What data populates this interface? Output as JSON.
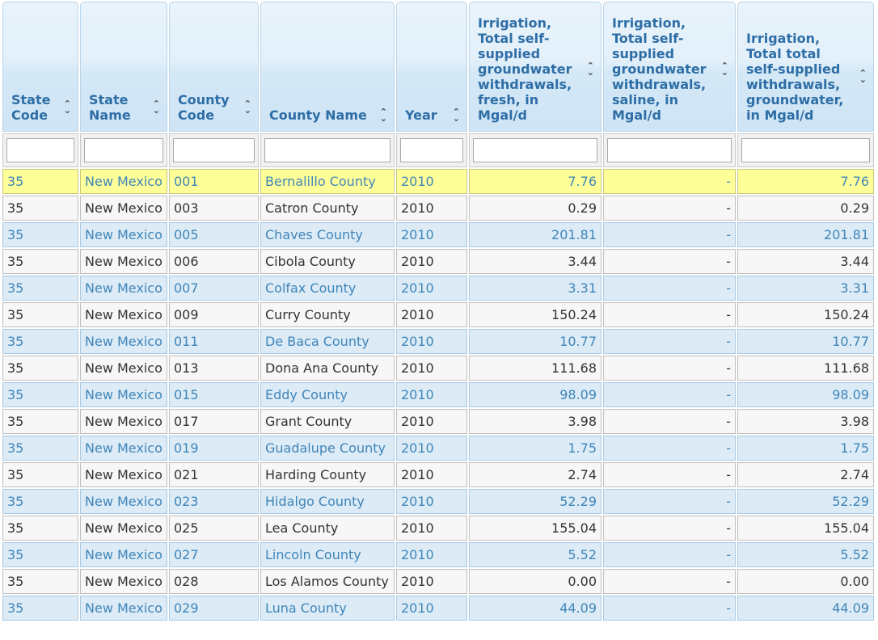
{
  "columns": [
    {
      "label": "State Code"
    },
    {
      "label": "State Name"
    },
    {
      "label": "County Code"
    },
    {
      "label": "County Name"
    },
    {
      "label": "Year"
    },
    {
      "label": "Irrigation, Total self-supplied groundwater withdrawals, fresh, in Mgal/d"
    },
    {
      "label": "Irrigation, Total self-supplied groundwater withdrawals, saline, in Mgal/d"
    },
    {
      "label": "Irrigation, Total total self-supplied withdrawals, groundwater, in Mgal/d"
    }
  ],
  "sort_icon": "sort-updown-icon",
  "rows": [
    {
      "state_code": "35",
      "state_name": "New Mexico",
      "county_code": "001",
      "county_name": "Bernalillo County",
      "year": "2010",
      "fresh": "7.76",
      "saline": "-",
      "total": "7.76"
    },
    {
      "state_code": "35",
      "state_name": "New Mexico",
      "county_code": "003",
      "county_name": "Catron County",
      "year": "2010",
      "fresh": "0.29",
      "saline": "-",
      "total": "0.29"
    },
    {
      "state_code": "35",
      "state_name": "New Mexico",
      "county_code": "005",
      "county_name": "Chaves County",
      "year": "2010",
      "fresh": "201.81",
      "saline": "-",
      "total": "201.81"
    },
    {
      "state_code": "35",
      "state_name": "New Mexico",
      "county_code": "006",
      "county_name": "Cibola County",
      "year": "2010",
      "fresh": "3.44",
      "saline": "-",
      "total": "3.44"
    },
    {
      "state_code": "35",
      "state_name": "New Mexico",
      "county_code": "007",
      "county_name": "Colfax County",
      "year": "2010",
      "fresh": "3.31",
      "saline": "-",
      "total": "3.31"
    },
    {
      "state_code": "35",
      "state_name": "New Mexico",
      "county_code": "009",
      "county_name": "Curry County",
      "year": "2010",
      "fresh": "150.24",
      "saline": "-",
      "total": "150.24"
    },
    {
      "state_code": "35",
      "state_name": "New Mexico",
      "county_code": "011",
      "county_name": "De Baca County",
      "year": "2010",
      "fresh": "10.77",
      "saline": "-",
      "total": "10.77"
    },
    {
      "state_code": "35",
      "state_name": "New Mexico",
      "county_code": "013",
      "county_name": "Dona Ana County",
      "year": "2010",
      "fresh": "111.68",
      "saline": "-",
      "total": "111.68"
    },
    {
      "state_code": "35",
      "state_name": "New Mexico",
      "county_code": "015",
      "county_name": "Eddy County",
      "year": "2010",
      "fresh": "98.09",
      "saline": "-",
      "total": "98.09"
    },
    {
      "state_code": "35",
      "state_name": "New Mexico",
      "county_code": "017",
      "county_name": "Grant County",
      "year": "2010",
      "fresh": "3.98",
      "saline": "-",
      "total": "3.98"
    },
    {
      "state_code": "35",
      "state_name": "New Mexico",
      "county_code": "019",
      "county_name": "Guadalupe County",
      "year": "2010",
      "fresh": "1.75",
      "saline": "-",
      "total": "1.75"
    },
    {
      "state_code": "35",
      "state_name": "New Mexico",
      "county_code": "021",
      "county_name": "Harding County",
      "year": "2010",
      "fresh": "2.74",
      "saline": "-",
      "total": "2.74"
    },
    {
      "state_code": "35",
      "state_name": "New Mexico",
      "county_code": "023",
      "county_name": "Hidalgo County",
      "year": "2010",
      "fresh": "52.29",
      "saline": "-",
      "total": "52.29"
    },
    {
      "state_code": "35",
      "state_name": "New Mexico",
      "county_code": "025",
      "county_name": "Lea County",
      "year": "2010",
      "fresh": "155.04",
      "saline": "-",
      "total": "155.04"
    },
    {
      "state_code": "35",
      "state_name": "New Mexico",
      "county_code": "027",
      "county_name": "Lincoln County",
      "year": "2010",
      "fresh": "5.52",
      "saline": "-",
      "total": "5.52"
    },
    {
      "state_code": "35",
      "state_name": "New Mexico",
      "county_code": "028",
      "county_name": "Los Alamos County",
      "year": "2010",
      "fresh": "0.00",
      "saline": "-",
      "total": "0.00"
    },
    {
      "state_code": "35",
      "state_name": "New Mexico",
      "county_code": "029",
      "county_name": "Luna County",
      "year": "2010",
      "fresh": "44.09",
      "saline": "-",
      "total": "44.09"
    }
  ],
  "colors": {
    "header_text": "#2e6ea6",
    "odd_row_bg": "#dcebf6",
    "odd_row_text": "#3f85b8",
    "selected_row_bg": "#ffff99"
  }
}
